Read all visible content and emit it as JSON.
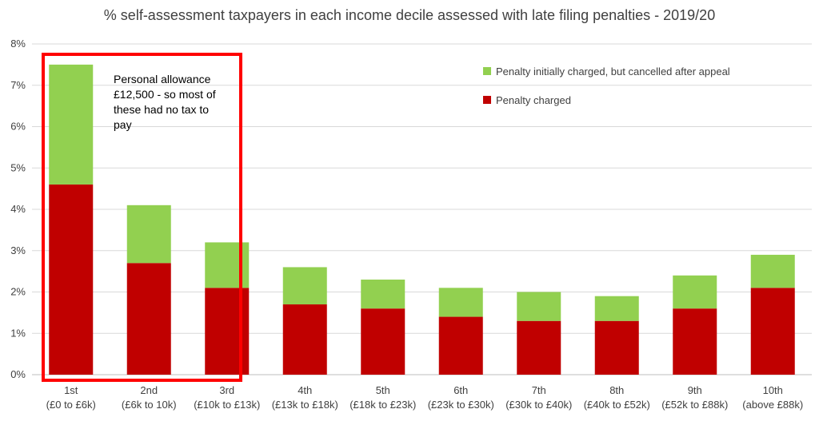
{
  "chart_data": {
    "type": "bar",
    "stacked": true,
    "title": "% self-assessment taxpayers in each income decile assessed with late filing penalties - 2019/20",
    "categories": [
      {
        "line1": "1st",
        "line2": "(£0 to £6k)"
      },
      {
        "line1": "2nd",
        "line2": "(£6k to 10k)"
      },
      {
        "line1": "3rd",
        "line2": "(£10k to £13k)"
      },
      {
        "line1": "4th",
        "line2": "(£13k to £18k)"
      },
      {
        "line1": "5th",
        "line2": "(£18k to £23k)"
      },
      {
        "line1": "6th",
        "line2": "(£23k to £30k)"
      },
      {
        "line1": "7th",
        "line2": "(£30k to £40k)"
      },
      {
        "line1": "8th",
        "line2": "(£40k to £52k)"
      },
      {
        "line1": "9th",
        "line2": "(£52k to £88k)"
      },
      {
        "line1": "10th",
        "line2": "(above £88k)"
      }
    ],
    "series": [
      {
        "name": "Penalty charged",
        "color": "#c00000",
        "values": [
          4.6,
          2.7,
          2.1,
          1.7,
          1.6,
          1.4,
          1.3,
          1.3,
          1.6,
          2.1
        ]
      },
      {
        "name": "Penalty initially charged, but cancelled after appeal",
        "color": "#92d050",
        "values": [
          2.9,
          1.4,
          1.1,
          0.9,
          0.7,
          0.7,
          0.7,
          0.6,
          0.8,
          0.8
        ]
      }
    ],
    "ylim": [
      0,
      8
    ],
    "yticks": [
      "0%",
      "1%",
      "2%",
      "3%",
      "4%",
      "5%",
      "6%",
      "7%",
      "8%"
    ],
    "grid": true,
    "legend_position": "top-right",
    "annotation": {
      "lines": [
        "Personal allowance",
        "£12,500 - so most of",
        "these had no tax to",
        "pay"
      ],
      "highlight_color": "#ff0000",
      "highlight_categories": [
        "1st",
        "2nd",
        "3rd"
      ]
    }
  }
}
